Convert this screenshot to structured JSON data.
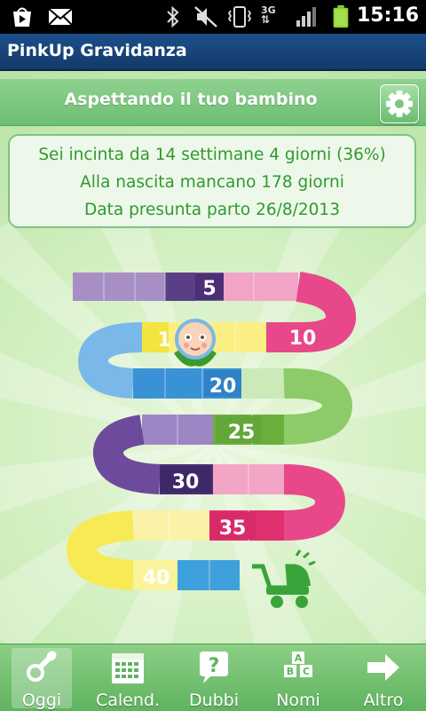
{
  "status_bar": {
    "time": "15:16",
    "network_label": "3G",
    "icons": [
      "play-store-icon",
      "email-icon",
      "bluetooth-icon",
      "mute-icon",
      "vibrate-icon",
      "data-3g-icon",
      "signal-icon",
      "battery-icon"
    ]
  },
  "app": {
    "title": "PinkUp Gravidanza"
  },
  "header": {
    "title": "Aspettando il tuo bambino",
    "settings_icon": "gear-icon"
  },
  "info": {
    "line1": "Sei incinta da 14 settimane 4 giorni (36%)",
    "line2": "Alla nascita mancano 178 giorni",
    "line3": "Data presunta parto 26/8/2013"
  },
  "progress": {
    "current_week": 14,
    "percent": 36
  },
  "board": {
    "milestones": [
      "5",
      "10",
      "1",
      "20",
      "25",
      "30",
      "35",
      "40"
    ]
  },
  "tabs": [
    {
      "label": "Oggi",
      "icon": "pacifier-icon",
      "active": true
    },
    {
      "label": "Calend.",
      "icon": "calendar-icon",
      "active": false
    },
    {
      "label": "Dubbi",
      "icon": "question-bubble-icon",
      "active": false
    },
    {
      "label": "Nomi",
      "icon": "abc-blocks-icon",
      "active": false
    },
    {
      "label": "Altro",
      "icon": "arrow-right-icon",
      "active": false
    }
  ],
  "colors": {
    "title_bar": "#1d4f8a",
    "header_green": "#7cc67f",
    "info_text": "#2f9a2f",
    "tab_green": "#6bbd6a"
  }
}
